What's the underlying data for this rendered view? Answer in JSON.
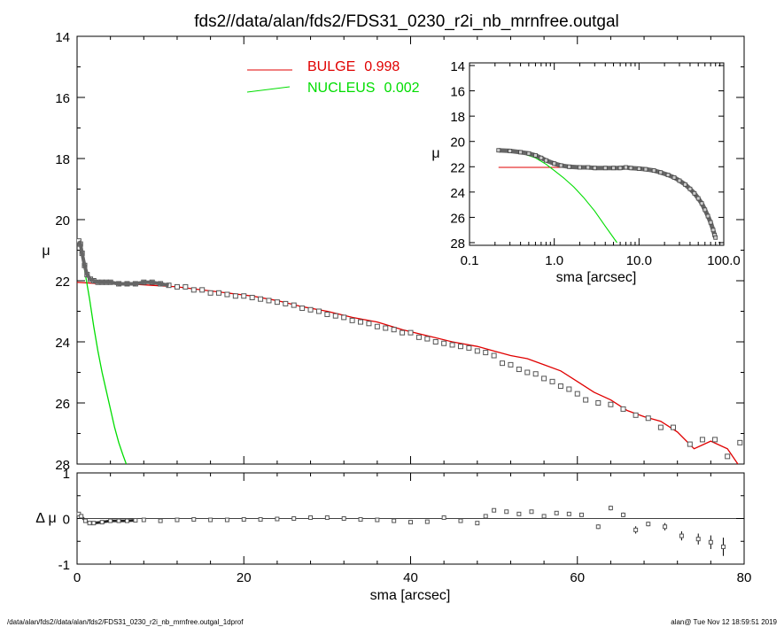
{
  "chart_data": [
    {
      "type": "scatter",
      "title": "fds2//data/alan/fds2/FDS31_0230_r2i_nb_mrnfree.outgal",
      "xlabel": "",
      "ylabel": "μ",
      "xlim": [
        0,
        80
      ],
      "ylim": [
        28,
        14
      ],
      "y_inverted": true,
      "xticks": [
        "0",
        "20",
        "40",
        "60",
        "80"
      ],
      "yticks": [
        "14",
        "16",
        "18",
        "20",
        "22",
        "24",
        "26",
        "28"
      ],
      "legend": [
        {
          "name": "BULGE",
          "value": "0.998",
          "color": "#e00000"
        },
        {
          "name": "NUCLEUS",
          "value": "0.002",
          "color": "#00dd00"
        }
      ],
      "legend_position": "top-center",
      "series": [
        {
          "name": "data",
          "marker": "square",
          "x": [
            0.2,
            0.4,
            0.6,
            0.9,
            1.2,
            1.6,
            2.0,
            2.5,
            3.0,
            3.5,
            4.0,
            5.0,
            6.0,
            7.0,
            8.0,
            9.0,
            10.0,
            11.0,
            12.0,
            13.0,
            14.0,
            15.0,
            16.0,
            17.0,
            18.0,
            19.0,
            20.0,
            21.0,
            22.0,
            23.0,
            24.0,
            25.0,
            26.0,
            27.0,
            28.0,
            29.0,
            30.0,
            31.0,
            32.0,
            33.0,
            34.0,
            35.0,
            36.0,
            37.0,
            38.0,
            39.0,
            40.0,
            41.0,
            42.0,
            43.0,
            44.0,
            45.0,
            46.0,
            47.0,
            48.0,
            49.0,
            50.0,
            51.0,
            52.0,
            53.0,
            54.0,
            55.0,
            56.0,
            57.0,
            58.0,
            59.0,
            60.0,
            61.0,
            62.5,
            64.0,
            65.5,
            67.0,
            68.5,
            70.0,
            71.5,
            73.5,
            75.0,
            76.5,
            78.0,
            79.5
          ],
          "y": [
            20.7,
            20.8,
            21.1,
            21.5,
            21.8,
            21.95,
            22.0,
            22.05,
            22.05,
            22.05,
            22.05,
            22.1,
            22.1,
            22.1,
            22.05,
            22.05,
            22.1,
            22.15,
            22.2,
            22.2,
            22.3,
            22.3,
            22.4,
            22.4,
            22.45,
            22.5,
            22.5,
            22.55,
            22.6,
            22.65,
            22.7,
            22.75,
            22.8,
            22.9,
            22.95,
            23.0,
            23.1,
            23.15,
            23.2,
            23.3,
            23.35,
            23.4,
            23.5,
            23.55,
            23.6,
            23.7,
            23.7,
            23.85,
            23.9,
            24.0,
            24.05,
            24.1,
            24.15,
            24.2,
            24.3,
            24.35,
            24.45,
            24.7,
            24.75,
            24.9,
            25.0,
            25.05,
            25.2,
            25.3,
            25.45,
            25.55,
            25.7,
            25.9,
            26.0,
            26.05,
            26.2,
            26.4,
            26.5,
            26.8,
            26.8,
            27.35,
            27.2,
            27.2,
            27.75,
            27.3
          ]
        },
        {
          "name": "BULGE",
          "color": "#e00000",
          "x": [
            0,
            3,
            6,
            9,
            12,
            15,
            18,
            21,
            24,
            27,
            30,
            33,
            36,
            39,
            42,
            45,
            48,
            50,
            52,
            54,
            56,
            58,
            60,
            62,
            64,
            66,
            68,
            70,
            72,
            74,
            76,
            78,
            80
          ],
          "y": [
            22.05,
            22.1,
            22.1,
            22.15,
            22.2,
            22.3,
            22.4,
            22.5,
            22.65,
            22.85,
            23.0,
            23.2,
            23.35,
            23.6,
            23.8,
            24.0,
            24.15,
            24.3,
            24.45,
            24.55,
            24.75,
            24.95,
            25.3,
            25.65,
            25.9,
            26.25,
            26.45,
            26.6,
            26.95,
            27.5,
            27.25,
            27.5,
            28.3
          ]
        },
        {
          "name": "NUCLEUS",
          "color": "#00dd00",
          "x": [
            0.2,
            0.5,
            1.0,
            1.5,
            2.0,
            2.5,
            3.0,
            3.5,
            4.0,
            4.5,
            5.0,
            5.5,
            5.9
          ],
          "y": [
            20.7,
            21.0,
            21.8,
            22.6,
            23.5,
            24.3,
            25.0,
            25.6,
            26.2,
            26.8,
            27.3,
            27.7,
            28.0
          ]
        }
      ]
    },
    {
      "type": "scatter",
      "title": "",
      "xlabel": "sma [arcsec]",
      "ylabel": "Δ μ",
      "xlim": [
        0,
        80
      ],
      "ylim": [
        -1,
        1
      ],
      "xticks": [
        "0",
        "20",
        "40",
        "60",
        "80"
      ],
      "yticks": [
        "1",
        "0",
        "-1"
      ],
      "series": [
        {
          "name": "residuals",
          "marker": "square",
          "x": [
            0.2,
            0.5,
            1.0,
            1.5,
            2.0,
            3.0,
            4.0,
            5.0,
            6.0,
            7.0,
            8.0,
            10.0,
            12.0,
            14.0,
            16.0,
            18.0,
            20.0,
            22.0,
            24.0,
            26.0,
            28.0,
            30.0,
            32.0,
            34.0,
            36.0,
            38.0,
            40.0,
            42.0,
            44.0,
            46.0,
            48.0,
            49.0,
            50.0,
            51.5,
            53.0,
            54.5,
            56.0,
            57.5,
            59.0,
            60.5,
            62.5,
            64.0,
            65.5,
            67.0,
            68.5,
            70.5,
            72.5,
            74.5,
            76.0,
            77.5
          ],
          "y": [
            0.1,
            0.05,
            -0.05,
            -0.1,
            -0.1,
            -0.08,
            -0.05,
            -0.05,
            -0.05,
            -0.04,
            -0.03,
            -0.05,
            -0.03,
            -0.02,
            -0.03,
            -0.03,
            -0.02,
            -0.02,
            -0.01,
            0.0,
            0.02,
            0.02,
            0.0,
            -0.02,
            -0.03,
            -0.05,
            -0.08,
            -0.07,
            0.02,
            -0.05,
            -0.1,
            0.05,
            0.18,
            0.15,
            0.1,
            0.15,
            0.05,
            0.12,
            0.1,
            0.08,
            -0.18,
            0.23,
            0.08,
            -0.25,
            -0.12,
            -0.18,
            -0.38,
            -0.45,
            -0.52,
            -0.62
          ],
          "err": [
            0,
            0,
            0,
            0,
            0,
            0,
            0,
            0,
            0,
            0,
            0,
            0,
            0,
            0,
            0,
            0,
            0,
            0,
            0,
            0,
            0,
            0,
            0,
            0,
            0,
            0,
            0,
            0,
            0,
            0,
            0,
            0,
            0,
            0,
            0,
            0,
            0,
            0,
            0,
            0,
            0.05,
            0.05,
            0.05,
            0.08,
            0.05,
            0.08,
            0.1,
            0.12,
            0.15,
            0.2
          ]
        }
      ]
    },
    {
      "type": "scatter",
      "title": "",
      "xlabel": "sma [arcsec]",
      "ylabel": "μ",
      "x_scale": "log",
      "xlim": [
        0.1,
        100
      ],
      "ylim": [
        28,
        14
      ],
      "y_inverted": true,
      "xticks": [
        "0.1",
        "1.0",
        "10.0",
        "100.0"
      ],
      "yticks": [
        "14",
        "16",
        "18",
        "20",
        "22",
        "24",
        "26",
        "28"
      ],
      "series": [
        {
          "name": "data",
          "marker": "square",
          "x": [
            0.22,
            0.3,
            0.4,
            0.5,
            0.6,
            0.7,
            0.8,
            1.0,
            1.2,
            1.5,
            2.0,
            2.5,
            3.0,
            4.0,
            5.0,
            6.0,
            7.0,
            8.0,
            10.0,
            12.0,
            15.0,
            18.0,
            22.0,
            26.0,
            30.0,
            35.0,
            40.0,
            45.0,
            50.0,
            55.0,
            60.0,
            65.0,
            70.0,
            75.0,
            78.0,
            80.0
          ],
          "y": [
            20.7,
            20.75,
            20.85,
            20.95,
            21.1,
            21.3,
            21.5,
            21.75,
            21.9,
            22.0,
            22.05,
            22.05,
            22.1,
            22.1,
            22.1,
            22.1,
            22.05,
            22.1,
            22.15,
            22.2,
            22.3,
            22.45,
            22.65,
            22.85,
            23.1,
            23.4,
            23.75,
            24.1,
            24.5,
            24.9,
            25.4,
            25.9,
            26.4,
            27.0,
            27.4,
            27.6
          ]
        },
        {
          "name": "BULGE",
          "color": "#e00000",
          "x": [
            0.22,
            0.5,
            1.0,
            2.0,
            3.0
          ],
          "y": [
            22.05,
            22.05,
            22.05,
            22.05,
            22.05
          ]
        },
        {
          "name": "NUCLEUS",
          "color": "#00dd00",
          "x": [
            0.22,
            0.4,
            0.6,
            0.8,
            1.0,
            1.3,
            1.7,
            2.2,
            3.0,
            4.0,
            5.5
          ],
          "y": [
            20.7,
            20.9,
            21.3,
            21.8,
            22.3,
            22.9,
            23.6,
            24.4,
            25.5,
            26.7,
            28.0
          ]
        }
      ]
    }
  ],
  "footer": {
    "left": "/data/alan/fds2//data/alan/fds2/FDS31_0230_r2i_nb_mrnfree.outgal_1dprof",
    "right": "alan@  Tue Nov 12 18:59:51 2019"
  }
}
